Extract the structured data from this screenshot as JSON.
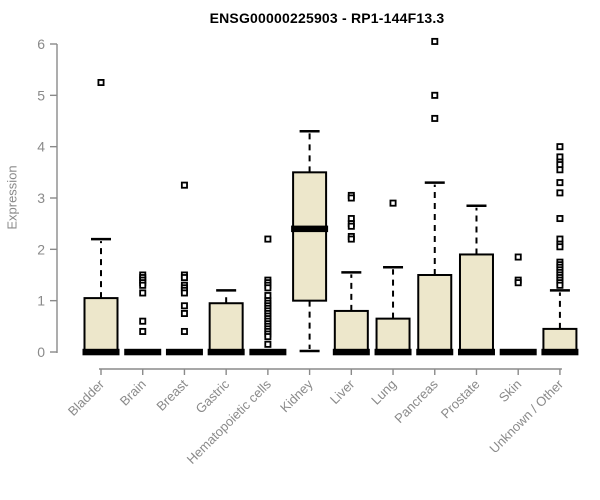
{
  "chart_data": {
    "type": "boxplot",
    "title": "ENSG00000225903 - RP1-144F13.3",
    "ylabel": "Expression",
    "xlabel": "",
    "ylim": [
      0,
      6
    ],
    "yticks": [
      0,
      1,
      2,
      3,
      4,
      5,
      6
    ],
    "grid": false,
    "legend": "none",
    "categories": [
      "Bladder",
      "Brain",
      "Breast",
      "Gastric",
      "Hematopoietic cells",
      "Kidney",
      "Liver",
      "Lung",
      "Pancreas",
      "Prostate",
      "Skin",
      "Unknown / Other"
    ],
    "series": [
      {
        "name": "Bladder",
        "q1": 0,
        "median": 0,
        "q3": 1.05,
        "whisker_low": 0,
        "whisker_high": 2.2,
        "outliers": [
          5.25
        ]
      },
      {
        "name": "Brain",
        "q1": 0,
        "median": 0,
        "q3": 0,
        "whisker_low": 0,
        "whisker_high": 0,
        "outliers": [
          1.5,
          1.45,
          1.4,
          1.35,
          1.3,
          1.15,
          0.6,
          0.4
        ]
      },
      {
        "name": "Breast",
        "q1": 0,
        "median": 0,
        "q3": 0,
        "whisker_low": 0,
        "whisker_high": 0,
        "outliers": [
          3.25,
          1.5,
          1.45,
          1.3,
          1.25,
          1.2,
          1.15,
          0.9,
          0.75,
          0.4
        ]
      },
      {
        "name": "Gastric",
        "q1": 0,
        "median": 0,
        "q3": 0.95,
        "whisker_low": 0,
        "whisker_high": 1.2,
        "outliers": []
      },
      {
        "name": "Hematopoietic cells",
        "q1": 0,
        "median": 0,
        "q3": 0,
        "whisker_low": 0,
        "whisker_high": 0,
        "outliers": [
          2.2,
          1.4,
          1.35,
          1.3,
          1.25,
          1.1,
          1.0,
          0.95,
          0.9,
          0.85,
          0.8,
          0.75,
          0.7,
          0.65,
          0.6,
          0.55,
          0.5,
          0.45,
          0.4,
          0.35,
          0.3,
          0.15
        ]
      },
      {
        "name": "Kidney",
        "q1": 1.0,
        "median": 2.4,
        "q3": 3.5,
        "whisker_low": 0.02,
        "whisker_high": 4.3,
        "outliers": []
      },
      {
        "name": "Liver",
        "q1": 0,
        "median": 0,
        "q3": 0.8,
        "whisker_low": 0,
        "whisker_high": 1.55,
        "outliers": [
          3.05,
          3.0,
          2.6,
          2.5,
          2.45,
          2.25,
          2.2
        ]
      },
      {
        "name": "Lung",
        "q1": 0,
        "median": 0,
        "q3": 0.65,
        "whisker_low": 0,
        "whisker_high": 1.65,
        "outliers": [
          2.9
        ]
      },
      {
        "name": "Pancreas",
        "q1": 0,
        "median": 0,
        "q3": 1.5,
        "whisker_low": 0,
        "whisker_high": 3.3,
        "outliers": [
          6.05,
          5.0,
          4.55
        ]
      },
      {
        "name": "Prostate",
        "q1": 0,
        "median": 0,
        "q3": 1.9,
        "whisker_low": 0,
        "whisker_high": 2.85,
        "outliers": []
      },
      {
        "name": "Skin",
        "q1": 0,
        "median": 0,
        "q3": 0,
        "whisker_low": 0,
        "whisker_high": 0,
        "outliers": [
          1.85,
          1.4,
          1.35
        ]
      },
      {
        "name": "Unknown / Other",
        "q1": 0,
        "median": 0,
        "q3": 0.45,
        "whisker_low": 0,
        "whisker_high": 1.2,
        "outliers": [
          4.0,
          3.8,
          3.7,
          3.65,
          3.55,
          3.3,
          3.1,
          2.6,
          2.2,
          2.1,
          2.05,
          1.75,
          1.7,
          1.65,
          1.6,
          1.55,
          1.5,
          1.45,
          1.4,
          1.35,
          1.3
        ]
      }
    ]
  },
  "colors": {
    "background": "#FFFFFF",
    "box_fill": "#EDE7CB",
    "box_stroke": "#000000",
    "median": "#000000",
    "whisker": "#000000",
    "outlier_stroke": "#000000",
    "outlier_fill": "#FFFFFF",
    "axis": "#8A8A8A",
    "tick_label": "#8A8A8A",
    "title": "#000000"
  }
}
